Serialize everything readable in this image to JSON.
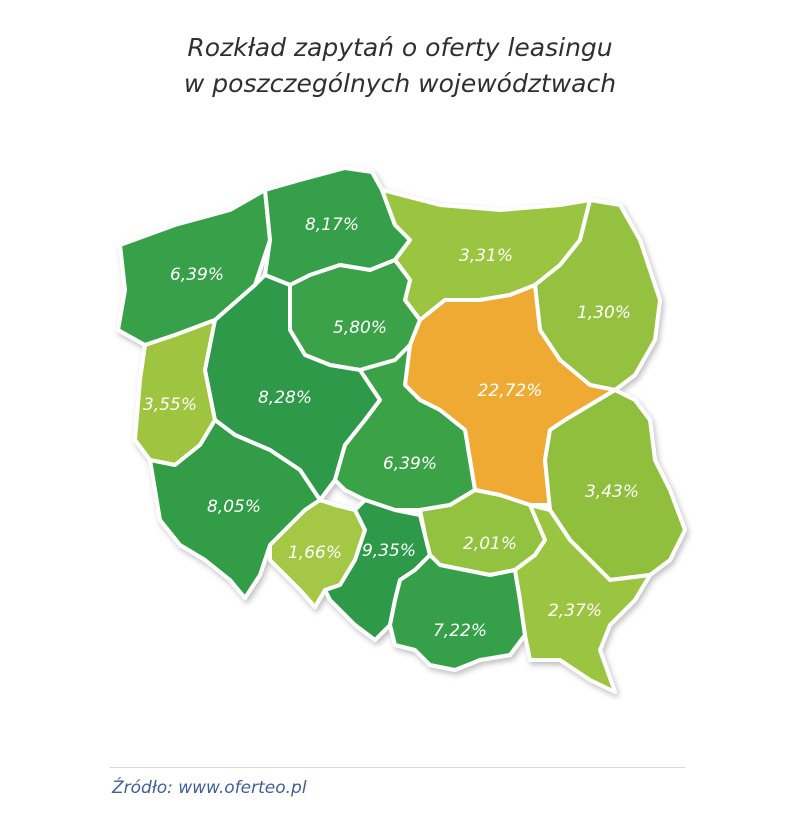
{
  "title": {
    "line1": "Rozkład zapytań o oferty leasingu",
    "line2": "w poszczególnych województwach"
  },
  "colors": {
    "dark_green": "#2f9a48",
    "mid_green": "#4fae45",
    "light_green": "#9bc440",
    "orange": "#eeaa33",
    "border": "#ffffff"
  },
  "regions": [
    {
      "value": "6,39%",
      "color": "#37a048"
    },
    {
      "value": "8,17%",
      "color": "#36a049"
    },
    {
      "value": "3,31%",
      "color": "#9bc440"
    },
    {
      "value": "1,30%",
      "color": "#94c23f"
    },
    {
      "value": "5,80%",
      "color": "#3aa248"
    },
    {
      "value": "3,55%",
      "color": "#9ec441"
    },
    {
      "value": "8,28%",
      "color": "#2f9a48"
    },
    {
      "value": "22,72%",
      "color": "#eeaa33"
    },
    {
      "value": "6,39%",
      "color": "#3aa246"
    },
    {
      "value": "8,05%",
      "color": "#329c47"
    },
    {
      "value": "1,66%",
      "color": "#a4c744"
    },
    {
      "value": "9,35%",
      "color": "#2f9a48"
    },
    {
      "value": "2,01%",
      "color": "#93c13f"
    },
    {
      "value": "7,22%",
      "color": "#36a048"
    },
    {
      "value": "3,43%",
      "color": "#8fbf3e"
    },
    {
      "value": "2,37%",
      "color": "#9bc440"
    }
  ],
  "source": "Źródło: www.oferteo.pl"
}
